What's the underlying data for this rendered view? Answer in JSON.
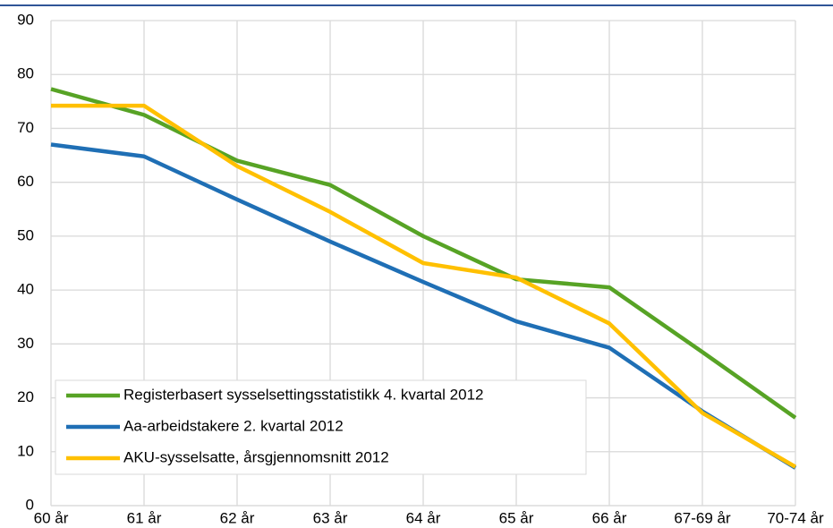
{
  "chart_data": {
    "type": "line",
    "categories": [
      "60 år",
      "61 år",
      "62 år",
      "63 år",
      "64 år",
      "65 år",
      "66 år",
      "67-69 år",
      "70-74 år"
    ],
    "series": [
      {
        "name": "Registerbasert sysselsettingsstatistikk 4. kvartal 2012",
        "color": "#57a325",
        "values": [
          77.3,
          72.5,
          64,
          59.5,
          50,
          42,
          40.5,
          28.5,
          16.3
        ]
      },
      {
        "name": "Aa-arbeidstakere 2. kvartal 2012",
        "color": "#1f6fb5",
        "values": [
          67,
          64.8,
          56.8,
          49,
          41.5,
          34.2,
          29.3,
          17.5,
          7
        ]
      },
      {
        "name": "AKU-sysselsatte, årsgjennomsnitt 2012",
        "color": "#ffc000",
        "values": [
          74.2,
          74.2,
          63,
          54.5,
          45,
          42.3,
          33.8,
          17.2,
          7.2
        ]
      }
    ],
    "ylim": [
      0,
      90
    ],
    "yticks": [
      0,
      10,
      20,
      30,
      40,
      50,
      60,
      70,
      80,
      90
    ],
    "grid": true,
    "legend": "lower left"
  }
}
